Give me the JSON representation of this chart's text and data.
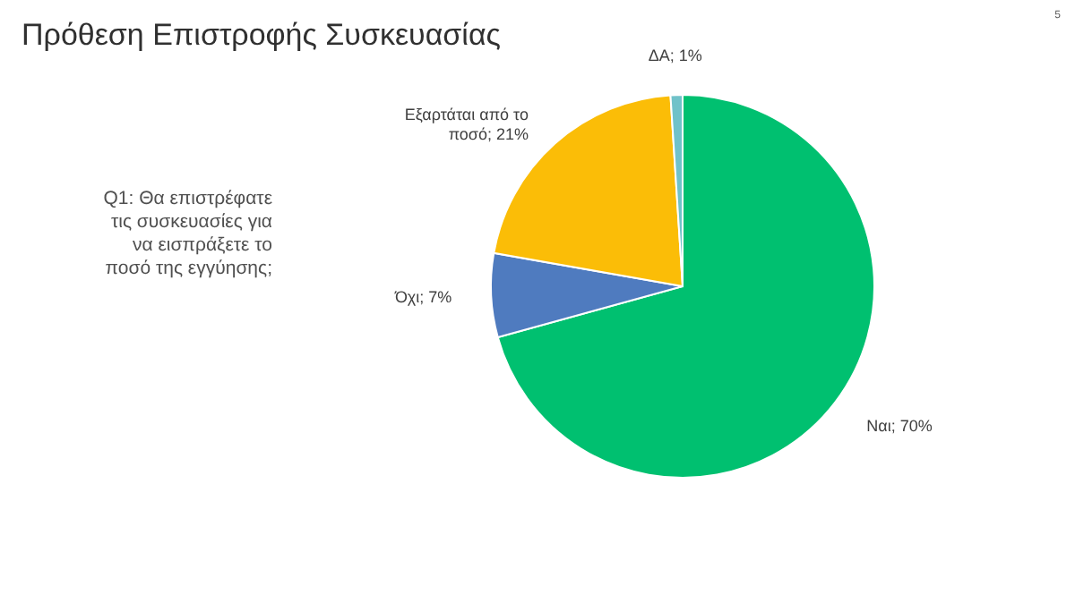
{
  "chart_data": {
    "type": "pie",
    "title": "Πρόθεση Επιστροφής Συσκευασίας",
    "annotations": [
      "Q1: Θα επιστρέφατε\nτις συσκευασίες για\nνα εισπράξετε το\nποσό της εγγύησης;",
      "5"
    ],
    "categories": [
      "Ναι; 70%",
      "Όχι; 7%",
      "Εξαρτάται από το ποσό; 21%",
      "ΔΑ; 1%"
    ],
    "values": [
      70,
      7,
      21,
      1
    ],
    "colors": [
      "#00c070",
      "#4f7bbf",
      "#fbbd07",
      "#70c2c9"
    ],
    "legend": false
  }
}
